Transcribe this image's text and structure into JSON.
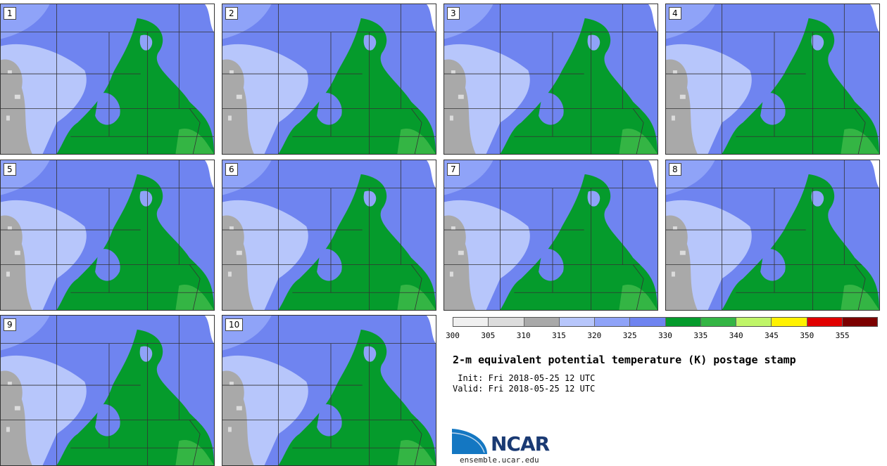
{
  "stamps": [
    {
      "label": "1"
    },
    {
      "label": "2"
    },
    {
      "label": "3"
    },
    {
      "label": "4"
    },
    {
      "label": "5"
    },
    {
      "label": "6"
    },
    {
      "label": "7"
    },
    {
      "label": "8"
    },
    {
      "label": "9"
    },
    {
      "label": "10"
    }
  ],
  "colorbar": {
    "colors": [
      "#f0f0f0",
      "#dcdcdc",
      "#a9a9a9",
      "#b7c6fb",
      "#8fa3f8",
      "#6f84f0",
      "#059b2c",
      "#34b544",
      "#bff568",
      "#fff200",
      "#e10000",
      "#7c0000"
    ],
    "ticks": [
      "300",
      "305",
      "310",
      "315",
      "320",
      "325",
      "330",
      "335",
      "340",
      "345",
      "350",
      "355"
    ]
  },
  "title": "2-m equivalent potential temperature (K) postage stamp",
  "init": " Init: Fri 2018-05-25 12 UTC",
  "valid": "Valid: Fri 2018-05-25 12 UTC",
  "logo": {
    "text": "NCAR",
    "url": "ensemble.ucar.edu"
  }
}
